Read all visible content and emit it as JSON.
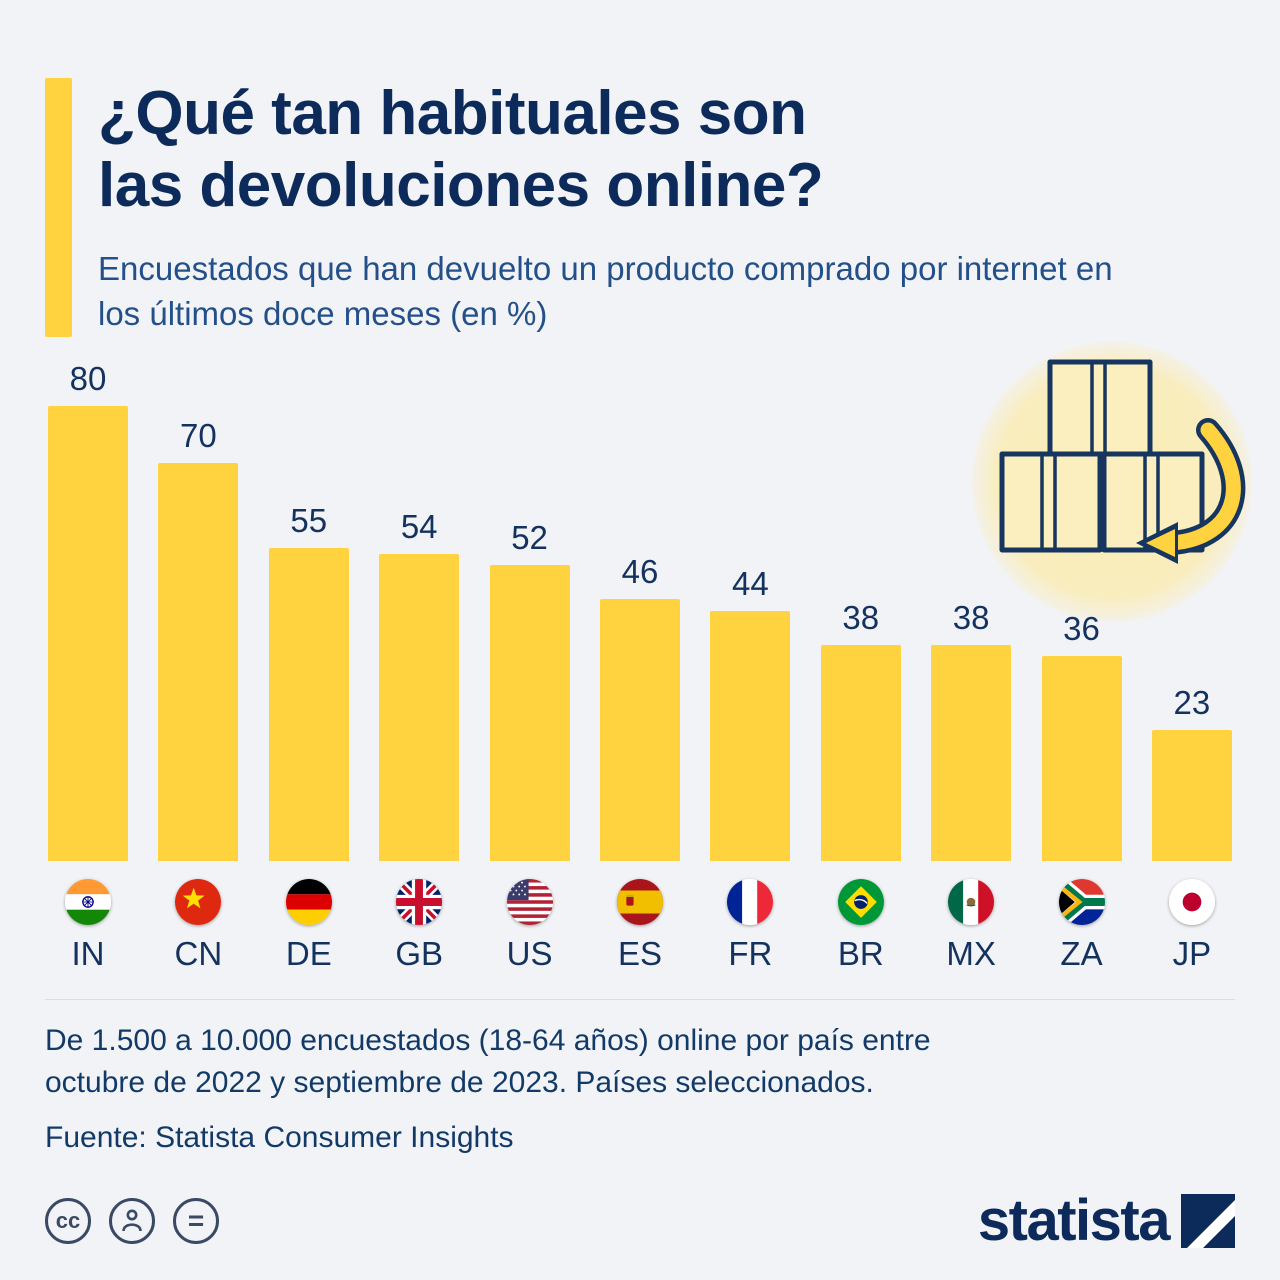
{
  "header": {
    "title_line1": "¿Qué tan habituales son",
    "title_line2": "las devoluciones online?",
    "subtitle": "Encuestados que han devuelto un producto comprado por internet en los últimos doce meses (en %)"
  },
  "chart_data": {
    "type": "bar",
    "categories": [
      "IN",
      "CN",
      "DE",
      "GB",
      "US",
      "ES",
      "FR",
      "BR",
      "MX",
      "ZA",
      "JP"
    ],
    "values": [
      80,
      70,
      55,
      54,
      52,
      46,
      44,
      38,
      38,
      36,
      23
    ],
    "title": "¿Qué tan habituales son las devoluciones online?",
    "xlabel": "",
    "ylabel": "",
    "ylim": [
      0,
      80
    ],
    "grid": false,
    "legend": false,
    "bar_color": "#FFD23F",
    "flags": [
      "flag-in-icon",
      "flag-cn-icon",
      "flag-de-icon",
      "flag-gb-icon",
      "flag-us-icon",
      "flag-es-icon",
      "flag-fr-icon",
      "flag-br-icon",
      "flag-mx-icon",
      "flag-za-icon",
      "flag-jp-icon"
    ]
  },
  "footer": {
    "note_line1": "De 1.500 a 10.000 encuestados (18-64 años) online por país entre",
    "note_line2": "octubre de 2022 y septiembre de 2023. Países seleccionados.",
    "source": "Fuente: Statista Consumer Insights"
  },
  "branding": {
    "logo_text": "statista",
    "license_cc": "cc",
    "license_equals": "="
  },
  "colors": {
    "accent_yellow": "#FFD23F",
    "navy": "#0C2B5B",
    "background": "#F2F3F7"
  }
}
